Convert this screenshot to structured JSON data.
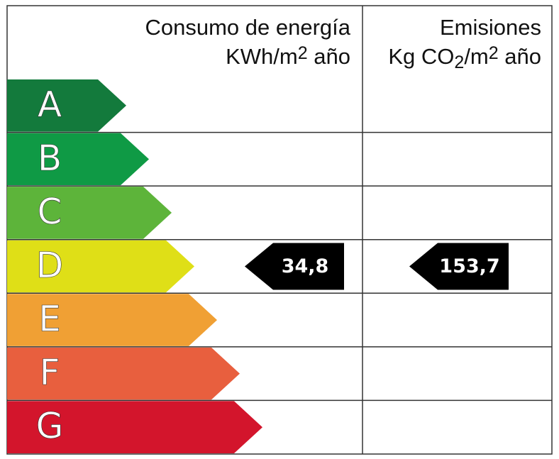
{
  "header": {
    "energy_title": "Consumo de energía",
    "energy_unit": [
      "KWh/m",
      "2",
      " año"
    ],
    "emissions_title": "Emisiones",
    "emissions_unit": [
      "Kg CO",
      "2",
      "/m",
      "2",
      " año"
    ]
  },
  "rows": [
    {
      "letter": "A",
      "color": "#137a3c"
    },
    {
      "letter": "B",
      "color": "#0f9a45"
    },
    {
      "letter": "C",
      "color": "#5db43a"
    },
    {
      "letter": "D",
      "color": "#dfdf17",
      "energy": "34,8",
      "emissions": "153,7"
    },
    {
      "letter": "E",
      "color": "#f0a034"
    },
    {
      "letter": "F",
      "color": "#e85f3e"
    },
    {
      "letter": "G",
      "color": "#d3152c"
    }
  ]
}
